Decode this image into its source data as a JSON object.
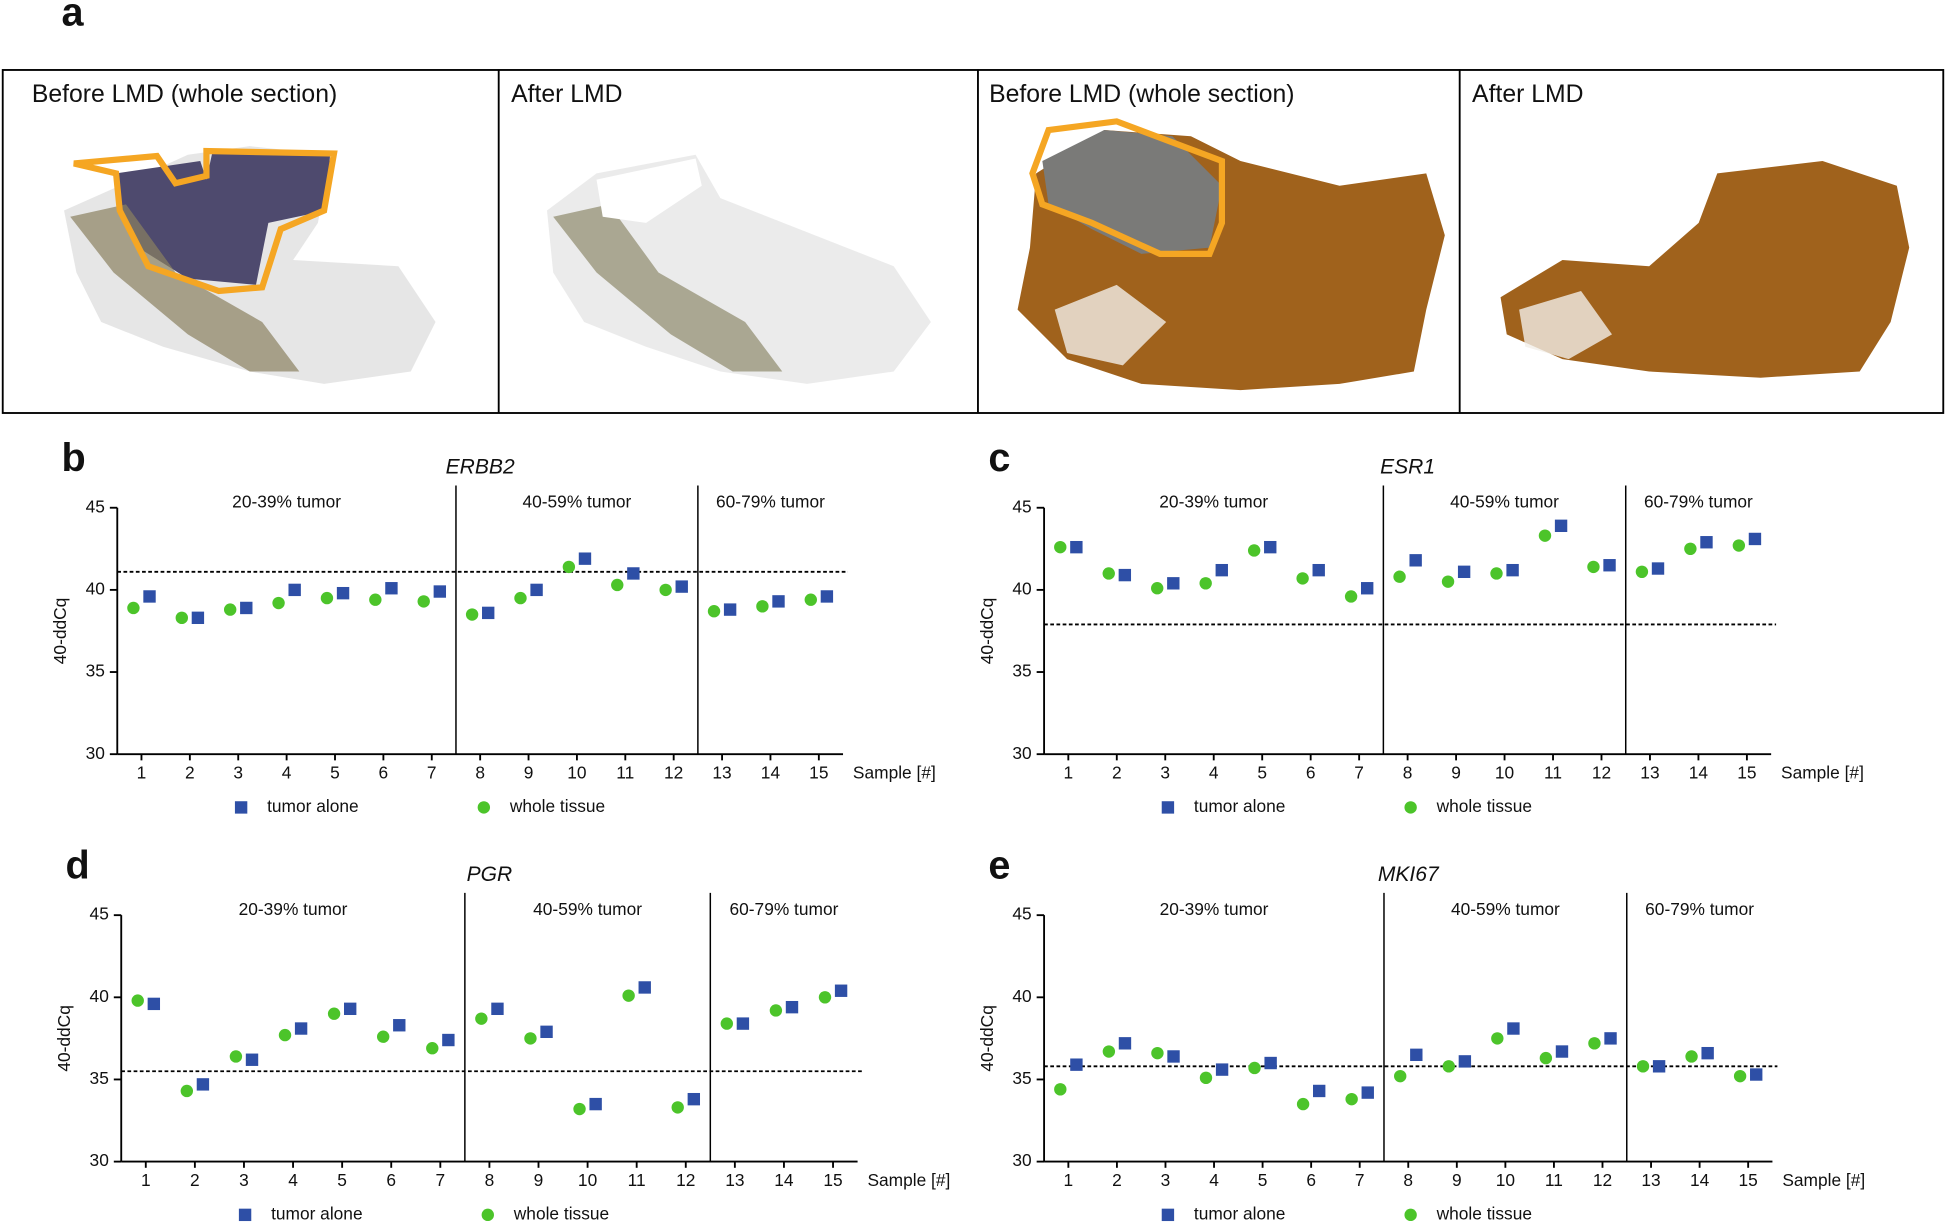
{
  "panel_a": {
    "label": "a",
    "panes": [
      "Before LMD (whole section)",
      "After LMD",
      "Before LMD (whole section)",
      "After LMD"
    ]
  },
  "chart_data": [
    {
      "type": "dot",
      "panel": "b",
      "title": "ERBB2",
      "x_label": "Sample [#]",
      "y_label": "40-ddCq",
      "categories": [
        "1",
        "2",
        "3",
        "4",
        "5",
        "6",
        "7",
        "8",
        "9",
        "10",
        "11",
        "12",
        "13",
        "14",
        "15"
      ],
      "ylim": [
        30,
        45
      ],
      "yticks": [
        30,
        35,
        40,
        45
      ],
      "reference_line": 41.1,
      "groups": [
        {
          "label": "20-39% tumor",
          "first": "1",
          "last": "7"
        },
        {
          "label": "40-59% tumor",
          "first": "8",
          "last": "12"
        },
        {
          "label": "60-79% tumor",
          "first": "13",
          "last": "15"
        }
      ],
      "series": [
        {
          "name": "tumor alone",
          "color": "#2e4fa6",
          "marker": "square",
          "values": [
            39.6,
            38.3,
            38.9,
            40.0,
            39.8,
            40.1,
            39.9,
            38.6,
            40.0,
            41.9,
            41.0,
            40.2,
            38.8,
            39.3,
            39.6
          ]
        },
        {
          "name": "whole tissue",
          "color": "#4cc42a",
          "marker": "circle",
          "values": [
            38.9,
            38.3,
            38.8,
            39.2,
            39.5,
            39.4,
            39.3,
            38.5,
            39.5,
            41.4,
            40.3,
            40.0,
            38.7,
            39.0,
            39.4
          ]
        }
      ]
    },
    {
      "type": "dot",
      "panel": "c",
      "title": "ESR1",
      "x_label": "Sample [#]",
      "y_label": "40-ddCq",
      "categories": [
        "1",
        "2",
        "3",
        "4",
        "5",
        "6",
        "7",
        "8",
        "9",
        "10",
        "11",
        "12",
        "13",
        "14",
        "15"
      ],
      "ylim": [
        30,
        45
      ],
      "yticks": [
        30,
        35,
        40,
        45
      ],
      "reference_line": 37.9,
      "groups": [
        {
          "label": "20-39% tumor",
          "first": "1",
          "last": "7"
        },
        {
          "label": "40-59% tumor",
          "first": "8",
          "last": "12"
        },
        {
          "label": "60-79% tumor",
          "first": "13",
          "last": "15"
        }
      ],
      "series": [
        {
          "name": "tumor alone",
          "color": "#2e4fa6",
          "marker": "square",
          "values": [
            42.6,
            40.9,
            40.4,
            41.2,
            42.6,
            41.2,
            40.1,
            41.8,
            41.1,
            41.2,
            43.9,
            41.5,
            41.3,
            42.9,
            43.1
          ]
        },
        {
          "name": "whole tissue",
          "color": "#4cc42a",
          "marker": "circle",
          "values": [
            42.6,
            41.0,
            40.1,
            40.4,
            42.4,
            40.7,
            39.6,
            40.8,
            40.5,
            41.0,
            43.3,
            41.4,
            41.1,
            42.5,
            42.7
          ]
        }
      ]
    },
    {
      "type": "dot",
      "panel": "d",
      "title": "PGR",
      "x_label": "Sample [#]",
      "y_label": "40-ddCq",
      "categories": [
        "1",
        "2",
        "3",
        "4",
        "5",
        "6",
        "7",
        "8",
        "9",
        "10",
        "11",
        "12",
        "13",
        "14",
        "15"
      ],
      "ylim": [
        30,
        45
      ],
      "yticks": [
        30,
        35,
        40,
        45
      ],
      "reference_line": 35.5,
      "groups": [
        {
          "label": "20-39% tumor",
          "first": "1",
          "last": "7"
        },
        {
          "label": "40-59% tumor",
          "first": "8",
          "last": "12"
        },
        {
          "label": "60-79% tumor",
          "first": "13",
          "last": "15"
        }
      ],
      "series": [
        {
          "name": "tumor alone",
          "color": "#2e4fa6",
          "marker": "square",
          "values": [
            39.6,
            34.7,
            36.2,
            38.1,
            39.3,
            38.3,
            37.4,
            39.3,
            37.9,
            33.5,
            40.6,
            33.8,
            38.4,
            39.4,
            40.4
          ]
        },
        {
          "name": "whole tissue",
          "color": "#4cc42a",
          "marker": "circle",
          "values": [
            39.8,
            34.3,
            36.4,
            37.7,
            39.0,
            37.6,
            36.9,
            38.7,
            37.5,
            33.2,
            40.1,
            33.3,
            38.4,
            39.2,
            40.0
          ]
        }
      ]
    },
    {
      "type": "dot",
      "panel": "e",
      "title": "MKI67",
      "x_label": "Sample [#]",
      "y_label": "40-ddCq",
      "categories": [
        "1",
        "2",
        "3",
        "4",
        "5",
        "6",
        "7",
        "8",
        "9",
        "10",
        "11",
        "12",
        "13",
        "14",
        "15"
      ],
      "ylim": [
        30,
        45
      ],
      "yticks": [
        30,
        35,
        40,
        45
      ],
      "reference_line": 35.8,
      "groups": [
        {
          "label": "20-39% tumor",
          "first": "1",
          "last": "7"
        },
        {
          "label": "40-59% tumor",
          "first": "8",
          "last": "12"
        },
        {
          "label": "60-79% tumor",
          "first": "13",
          "last": "15"
        }
      ],
      "series": [
        {
          "name": "tumor alone",
          "color": "#2e4fa6",
          "marker": "square",
          "values": [
            35.9,
            37.2,
            36.4,
            35.6,
            36.0,
            34.3,
            34.2,
            36.5,
            36.1,
            38.1,
            36.7,
            37.5,
            35.8,
            36.6,
            35.3
          ]
        },
        {
          "name": "whole tissue",
          "color": "#4cc42a",
          "marker": "circle",
          "values": [
            34.4,
            36.7,
            36.6,
            35.1,
            35.7,
            33.5,
            33.8,
            35.2,
            35.8,
            37.5,
            36.3,
            37.2,
            35.8,
            36.4,
            35.2
          ]
        }
      ]
    }
  ]
}
